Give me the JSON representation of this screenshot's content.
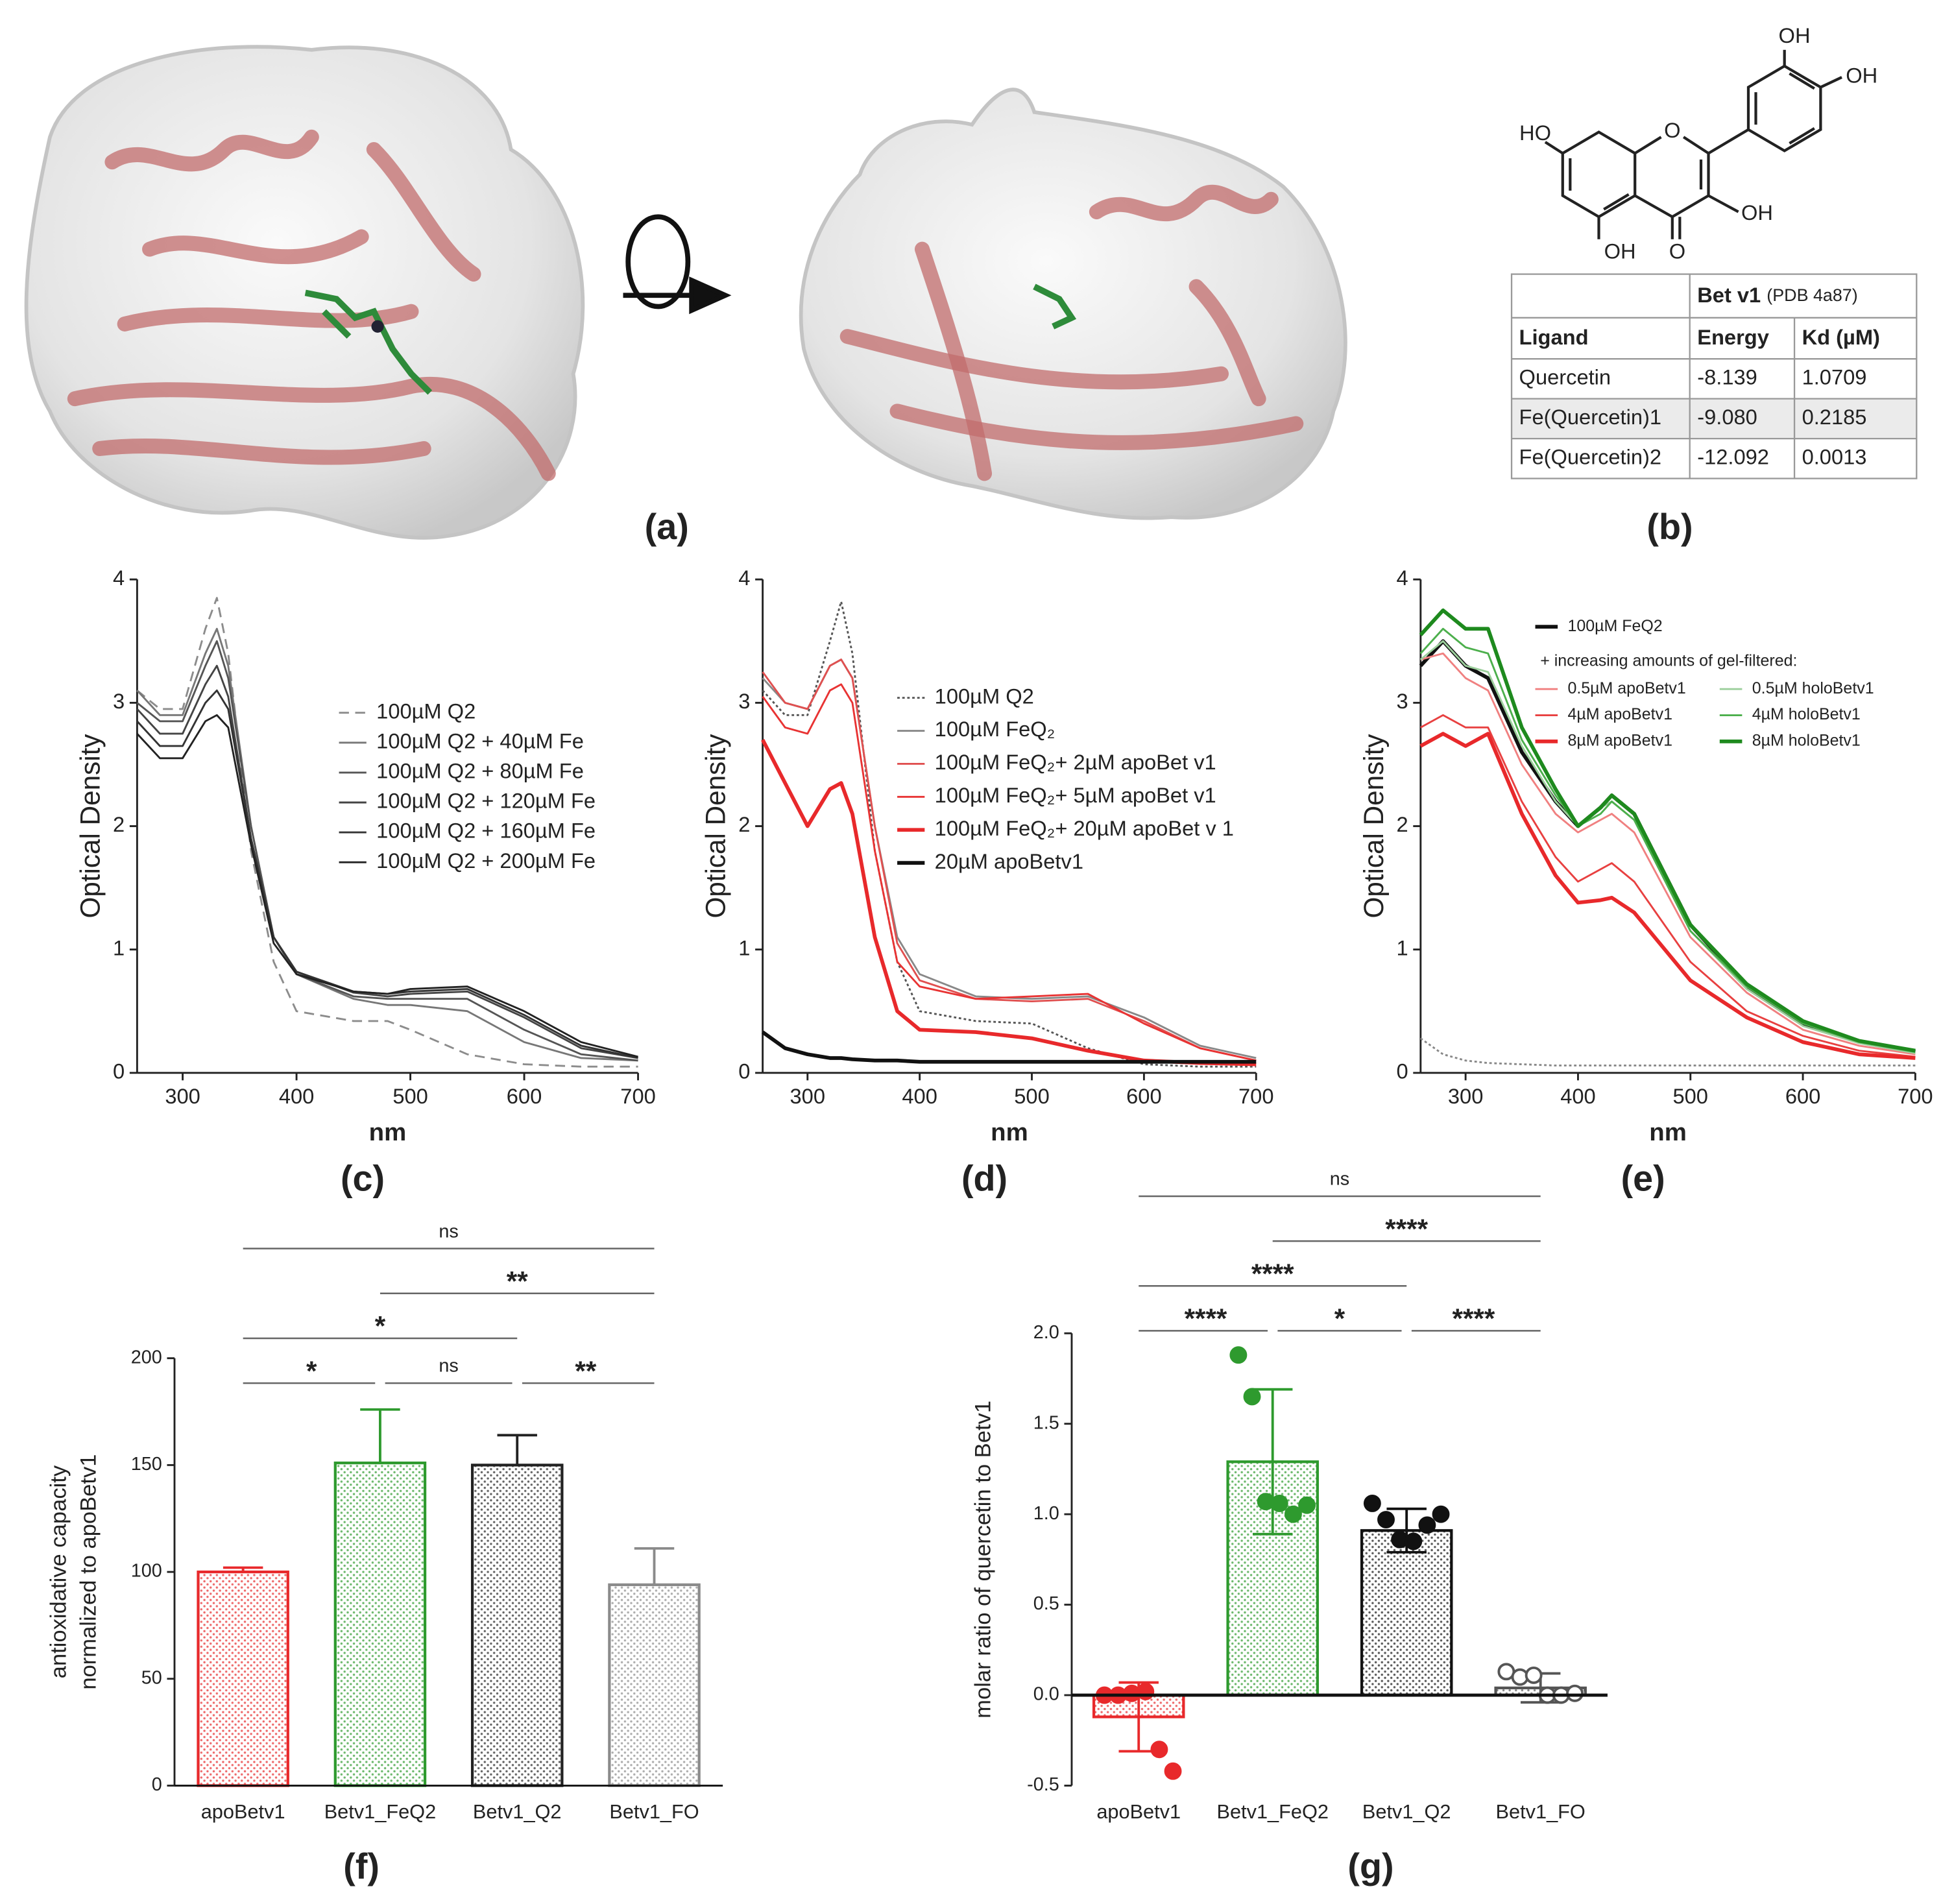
{
  "panel_a": {
    "label": "(a)"
  },
  "panel_b": {
    "label": "(b)",
    "structure_labels": [
      "HO",
      "O",
      "OH",
      "OH",
      "O",
      "OH",
      "OH"
    ],
    "table": {
      "title": "Bet v1",
      "title_note": "(PDB 4a87)",
      "columns": [
        "Ligand",
        "Energy",
        "Kd (µM)"
      ],
      "rows": [
        [
          "Quercetin",
          "-8.139",
          "1.0709"
        ],
        [
          "Fe(Quercetin)1",
          "-9.080",
          "0.2185"
        ],
        [
          "Fe(Quercetin)2",
          "-12.092",
          "0.0013"
        ]
      ]
    }
  },
  "chart_data": [
    {
      "type": "line",
      "panel_label": "(c)",
      "xlabel": "nm",
      "ylabel": "Optical Density",
      "x": [
        260,
        280,
        300,
        320,
        330,
        340,
        360,
        380,
        400,
        450,
        480,
        500,
        550,
        600,
        650,
        700
      ],
      "xlim": [
        260,
        700
      ],
      "xticks": [
        300,
        400,
        500,
        600,
        700
      ],
      "ylim": [
        0,
        4
      ],
      "yticks": [
        0,
        1,
        2,
        3,
        4
      ],
      "series": [
        {
          "name": "100µM Q2",
          "color": "#8c8c8c",
          "dash": "dashed",
          "values": [
            3.1,
            2.95,
            2.95,
            3.6,
            3.85,
            3.4,
            1.8,
            0.9,
            0.5,
            0.42,
            0.42,
            0.35,
            0.15,
            0.07,
            0.05,
            0.05
          ]
        },
        {
          "name": "100µM Q2 + 40µM Fe",
          "color": "#777777",
          "values": [
            3.1,
            2.9,
            2.9,
            3.4,
            3.6,
            3.3,
            2.0,
            1.1,
            0.8,
            0.6,
            0.55,
            0.55,
            0.5,
            0.25,
            0.12,
            0.1
          ]
        },
        {
          "name": "100µM Q2 + 80µM Fe",
          "color": "#555555",
          "values": [
            3.0,
            2.85,
            2.85,
            3.3,
            3.5,
            3.2,
            2.0,
            1.1,
            0.8,
            0.62,
            0.6,
            0.6,
            0.6,
            0.35,
            0.15,
            0.1
          ]
        },
        {
          "name": "100µM Q2 + 120µM Fe",
          "color": "#444444",
          "values": [
            2.95,
            2.75,
            2.75,
            3.15,
            3.3,
            3.05,
            1.9,
            1.1,
            0.82,
            0.65,
            0.62,
            0.64,
            0.66,
            0.45,
            0.2,
            0.12
          ]
        },
        {
          "name": "100µM Q2 + 160µM Fe",
          "color": "#333333",
          "values": [
            2.85,
            2.65,
            2.65,
            3.0,
            3.1,
            2.95,
            1.9,
            1.1,
            0.82,
            0.66,
            0.64,
            0.66,
            0.68,
            0.47,
            0.22,
            0.12
          ]
        },
        {
          "name": "100µM Q2 + 200µM Fe",
          "color": "#222222",
          "values": [
            2.75,
            2.55,
            2.55,
            2.85,
            2.9,
            2.8,
            1.85,
            1.05,
            0.8,
            0.66,
            0.64,
            0.68,
            0.7,
            0.5,
            0.25,
            0.13
          ]
        }
      ]
    },
    {
      "type": "line",
      "panel_label": "(d)",
      "xlabel": "nm",
      "ylabel": "Optical Density",
      "x": [
        260,
        280,
        300,
        320,
        330,
        340,
        360,
        380,
        400,
        450,
        500,
        550,
        600,
        650,
        700
      ],
      "xlim": [
        260,
        700
      ],
      "xticks": [
        300,
        400,
        500,
        600,
        700
      ],
      "ylim": [
        0,
        4
      ],
      "yticks": [
        0,
        1,
        2,
        3,
        4
      ],
      "series": [
        {
          "name": "100µM Q2",
          "color": "#555555",
          "dash": "dotted",
          "values": [
            3.1,
            2.9,
            2.9,
            3.5,
            3.82,
            3.4,
            1.8,
            0.9,
            0.5,
            0.42,
            0.4,
            0.2,
            0.07,
            0.05,
            0.05
          ]
        },
        {
          "name": "100µM FeQ₂",
          "color": "#888888",
          "values": [
            3.2,
            3.0,
            2.95,
            3.3,
            3.35,
            3.2,
            2.0,
            1.1,
            0.8,
            0.62,
            0.6,
            0.62,
            0.45,
            0.22,
            0.12
          ]
        },
        {
          "name": "100µM FeQ₂+ 2µM apoBet v1",
          "color": "#e05050",
          "values": [
            3.25,
            3.0,
            2.95,
            3.3,
            3.35,
            3.2,
            2.0,
            1.05,
            0.75,
            0.6,
            0.58,
            0.6,
            0.42,
            0.2,
            0.1
          ]
        },
        {
          "name": "100µM FeQ₂+ 5µM apoBet v1",
          "color": "#e83333",
          "values": [
            3.05,
            2.8,
            2.75,
            3.1,
            3.15,
            3.0,
            1.8,
            0.9,
            0.7,
            0.6,
            0.62,
            0.64,
            0.4,
            0.2,
            0.1
          ]
        },
        {
          "name": "100µM FeQ₂+ 20µM apoBet v 1",
          "color": "#e8292b",
          "style": "thick",
          "values": [
            2.7,
            2.35,
            2.0,
            2.3,
            2.35,
            2.1,
            1.1,
            0.5,
            0.35,
            0.33,
            0.28,
            0.18,
            0.1,
            0.08,
            0.07
          ]
        },
        {
          "name": "20µM apoBetv1",
          "color": "#111111",
          "style": "thick",
          "values": [
            0.33,
            0.2,
            0.15,
            0.12,
            0.12,
            0.11,
            0.1,
            0.1,
            0.09,
            0.09,
            0.09,
            0.09,
            0.09,
            0.09,
            0.09
          ]
        }
      ]
    },
    {
      "type": "line",
      "panel_label": "(e)",
      "xlabel": "nm",
      "ylabel": "Optical Density",
      "legend_note": "+ increasing amounts of gel-filtered:",
      "x": [
        260,
        280,
        300,
        320,
        350,
        380,
        400,
        420,
        430,
        450,
        500,
        550,
        600,
        650,
        700
      ],
      "xlim": [
        260,
        700
      ],
      "xticks": [
        300,
        400,
        500,
        600,
        700
      ],
      "ylim": [
        0,
        4
      ],
      "yticks": [
        0,
        1,
        2,
        3,
        4
      ],
      "series": [
        {
          "name": "100µM FeQ2",
          "color": "#111111",
          "style": "thick",
          "values": [
            3.3,
            3.5,
            3.3,
            3.2,
            2.6,
            2.2,
            2.0,
            2.15,
            2.25,
            2.1,
            1.2,
            0.7,
            0.4,
            0.25,
            0.17
          ]
        },
        {
          "name": "0.5µM apoBetv1",
          "color": "#f08080",
          "values": [
            3.35,
            3.4,
            3.2,
            3.1,
            2.5,
            2.1,
            1.95,
            2.05,
            2.1,
            1.95,
            1.1,
            0.65,
            0.35,
            0.22,
            0.15
          ]
        },
        {
          "name": "4µM apoBetv1",
          "color": "#e84040",
          "values": [
            2.8,
            2.9,
            2.8,
            2.8,
            2.2,
            1.75,
            1.55,
            1.65,
            1.7,
            1.55,
            0.9,
            0.5,
            0.3,
            0.18,
            0.13
          ]
        },
        {
          "name": "8µM apoBetv1",
          "color": "#e8292b",
          "style": "thick",
          "values": [
            2.65,
            2.75,
            2.65,
            2.75,
            2.1,
            1.6,
            1.38,
            1.4,
            1.42,
            1.3,
            0.75,
            0.45,
            0.25,
            0.15,
            0.12
          ]
        },
        {
          "name": "0.5µM holoBetv1",
          "color": "#9ccf9c",
          "values": [
            3.35,
            3.5,
            3.3,
            3.25,
            2.65,
            2.2,
            2.0,
            2.15,
            2.2,
            2.05,
            1.15,
            0.68,
            0.38,
            0.24,
            0.16
          ]
        },
        {
          "name": "4µM holoBetv1",
          "color": "#4caf4c",
          "values": [
            3.4,
            3.6,
            3.45,
            3.4,
            2.7,
            2.25,
            2.0,
            2.1,
            2.2,
            2.05,
            1.15,
            0.7,
            0.4,
            0.25,
            0.17
          ]
        },
        {
          "name": "8µM holoBetv1",
          "color": "#1e8a1e",
          "style": "thick",
          "values": [
            3.55,
            3.75,
            3.6,
            3.6,
            2.8,
            2.3,
            2.0,
            2.15,
            2.25,
            2.1,
            1.2,
            0.72,
            0.42,
            0.26,
            0.18
          ]
        },
        {
          "color": "#888888",
          "dash": "dotted",
          "values": [
            0.28,
            0.15,
            0.1,
            0.08,
            0.07,
            0.06,
            0.06,
            0.06,
            0.06,
            0.06,
            0.06,
            0.06,
            0.06,
            0.06,
            0.06
          ]
        }
      ]
    },
    {
      "type": "bar",
      "panel_label": "(f)",
      "ylabel": [
        "antioxidative capacity",
        "normalized to apoBetv1"
      ],
      "categories": [
        "apoBetv1",
        "Betv1_FeQ2",
        "Betv1_Q2",
        "Betv1_FO"
      ],
      "values": [
        100,
        151,
        150,
        94
      ],
      "errors": [
        2,
        25,
        14,
        17
      ],
      "error_direction": "up",
      "colors": [
        "#e8292b",
        "#2e9a2e",
        "#222222",
        "#8a8a8a"
      ],
      "pattern": "dotted",
      "ylim": [
        0,
        200
      ],
      "yticks": [
        0,
        50,
        100,
        150,
        200
      ],
      "comparisons": [
        {
          "pair": [
            0,
            1
          ],
          "label": "*"
        },
        {
          "pair": [
            1,
            2
          ],
          "label": "ns"
        },
        {
          "pair": [
            2,
            3
          ],
          "label": "**"
        },
        {
          "pair": [
            0,
            2
          ],
          "label": "*"
        },
        {
          "pair": [
            1,
            3
          ],
          "label": "**"
        },
        {
          "pair": [
            0,
            3
          ],
          "label": "ns"
        }
      ]
    },
    {
      "type": "bar",
      "panel_label": "(g)",
      "ylabel": "molar ratio of quercetin to Betv1",
      "categories": [
        "apoBetv1",
        "Betv1_FeQ2",
        "Betv1_Q2",
        "Betv1_FO"
      ],
      "values": [
        -0.12,
        1.29,
        0.91,
        0.04
      ],
      "errors": [
        0.19,
        0.4,
        0.12,
        0.08
      ],
      "error_direction": "both",
      "points": [
        [
          0.0,
          0.0,
          0.01,
          0.02,
          -0.3,
          -0.42
        ],
        [
          1.88,
          1.65,
          1.07,
          1.06,
          1.0,
          1.05
        ],
        [
          1.06,
          0.97,
          0.86,
          0.85,
          0.94,
          1.0
        ],
        [
          0.13,
          0.1,
          0.11,
          0.0,
          0.0,
          0.01
        ]
      ],
      "hollow": [
        false,
        false,
        false,
        true
      ],
      "colors": [
        "#e8292b",
        "#2e9a2e",
        "#111111",
        "#555555"
      ],
      "pattern": "dotted",
      "ylim": [
        -0.5,
        2.0
      ],
      "yticks": [
        -0.5,
        {
          "value": 0,
          "label": "0.0"
        },
        0.5,
        {
          "value": 1,
          "label": "1.0"
        },
        1.5,
        {
          "value": 2,
          "label": "2.0"
        }
      ],
      "comparisons": [
        {
          "pair": [
            0,
            1
          ],
          "label": "****"
        },
        {
          "pair": [
            1,
            2
          ],
          "label": "*"
        },
        {
          "pair": [
            2,
            3
          ],
          "label": "****"
        },
        {
          "pair": [
            0,
            2
          ],
          "label": "****"
        },
        {
          "pair": [
            1,
            3
          ],
          "label": "****"
        },
        {
          "pair": [
            0,
            3
          ],
          "label": "ns"
        }
      ]
    }
  ]
}
